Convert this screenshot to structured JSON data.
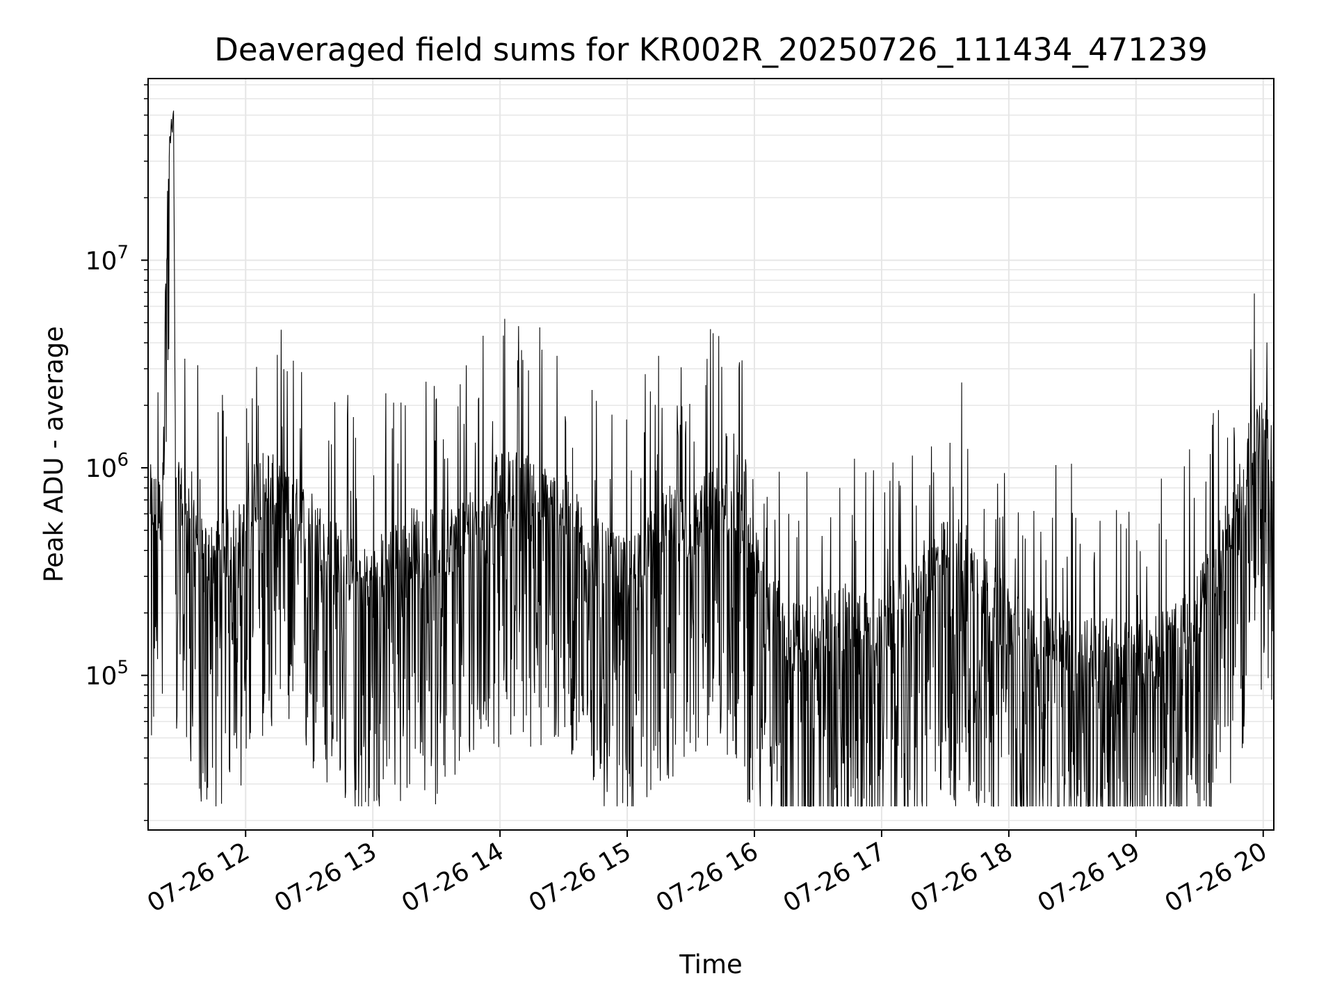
{
  "chart_data": {
    "type": "line",
    "title": "Deaveraged field sums for KR002R_20250726_111434_471239",
    "xlabel": "Time",
    "ylabel": "Peak ADU - average",
    "x_type": "datetime",
    "x_range": [
      "2025-07-26 11:14",
      "2025-07-26 20:05"
    ],
    "y_scale": "log",
    "ylim": [
      18000,
      75000000
    ],
    "grid": true,
    "grid_color": "#e6e6e6",
    "line_color": "#000000",
    "x_ticks": [
      {
        "value": "2025-07-26 12:00",
        "label": "07-26 12"
      },
      {
        "value": "2025-07-26 13:00",
        "label": "07-26 13"
      },
      {
        "value": "2025-07-26 14:00",
        "label": "07-26 14"
      },
      {
        "value": "2025-07-26 15:00",
        "label": "07-26 15"
      },
      {
        "value": "2025-07-26 16:00",
        "label": "07-26 16"
      },
      {
        "value": "2025-07-26 17:00",
        "label": "07-26 17"
      },
      {
        "value": "2025-07-26 18:00",
        "label": "07-26 18"
      },
      {
        "value": "2025-07-26 19:00",
        "label": "07-26 19"
      },
      {
        "value": "2025-07-26 20:00",
        "label": "07-26 20"
      }
    ],
    "y_ticks": [
      {
        "value": 100000,
        "base": "10",
        "exp": "5"
      },
      {
        "value": 1000000,
        "base": "10",
        "exp": "6"
      },
      {
        "value": 10000000,
        "base": "10",
        "exp": "7"
      }
    ],
    "series": [
      {
        "x": [
          "2025-07-26 11:15",
          "2025-07-26 11:20",
          "2025-07-26 11:24",
          "2025-07-26 11:26",
          "2025-07-26 11:27",
          "2025-07-26 11:29",
          "2025-07-26 11:35",
          "2025-07-26 11:40",
          "2025-07-26 11:45",
          "2025-07-26 11:50",
          "2025-07-26 11:55",
          "2025-07-26 12:00",
          "2025-07-26 12:05",
          "2025-07-26 12:10",
          "2025-07-26 12:15",
          "2025-07-26 12:20",
          "2025-07-26 12:30",
          "2025-07-26 12:40",
          "2025-07-26 12:50",
          "2025-07-26 13:00",
          "2025-07-26 13:10",
          "2025-07-26 13:20",
          "2025-07-26 13:30",
          "2025-07-26 13:40",
          "2025-07-26 13:50",
          "2025-07-26 14:00",
          "2025-07-26 14:10",
          "2025-07-26 14:20",
          "2025-07-26 14:30",
          "2025-07-26 14:40",
          "2025-07-26 14:50",
          "2025-07-26 15:00",
          "2025-07-26 15:10",
          "2025-07-26 15:20",
          "2025-07-26 15:30",
          "2025-07-26 15:40",
          "2025-07-26 15:50",
          "2025-07-26 16:00",
          "2025-07-26 16:10",
          "2025-07-26 16:20",
          "2025-07-26 16:30",
          "2025-07-26 16:40",
          "2025-07-26 16:50",
          "2025-07-26 17:00",
          "2025-07-26 17:10",
          "2025-07-26 17:20",
          "2025-07-26 17:30",
          "2025-07-26 17:40",
          "2025-07-26 17:50",
          "2025-07-26 18:00",
          "2025-07-26 18:10",
          "2025-07-26 18:20",
          "2025-07-26 18:30",
          "2025-07-26 18:40",
          "2025-07-26 18:50",
          "2025-07-26 19:00",
          "2025-07-26 19:10",
          "2025-07-26 19:20",
          "2025-07-26 19:30",
          "2025-07-26 19:40",
          "2025-07-26 19:45",
          "2025-07-26 19:50",
          "2025-07-26 19:55",
          "2025-07-26 20:00",
          "2025-07-26 20:03",
          "2025-07-26 20:05"
        ],
        "y": [
          700000,
          620000,
          35000000,
          50000000,
          700000,
          720000,
          650000,
          350000,
          380000,
          420000,
          450000,
          500000,
          800000,
          900000,
          700000,
          650000,
          550000,
          400000,
          320000,
          300000,
          380000,
          450000,
          420000,
          480000,
          700000,
          800000,
          850000,
          700000,
          650000,
          450000,
          350000,
          300000,
          450000,
          550000,
          500000,
          700000,
          650000,
          350000,
          200000,
          150000,
          180000,
          200000,
          170000,
          160000,
          220000,
          300000,
          380000,
          400000,
          250000,
          180000,
          150000,
          160000,
          150000,
          140000,
          130000,
          120000,
          140000,
          150000,
          220000,
          400000,
          550000,
          750000,
          1500000,
          1400000,
          1100000,
          1300000
        ]
      }
    ]
  }
}
